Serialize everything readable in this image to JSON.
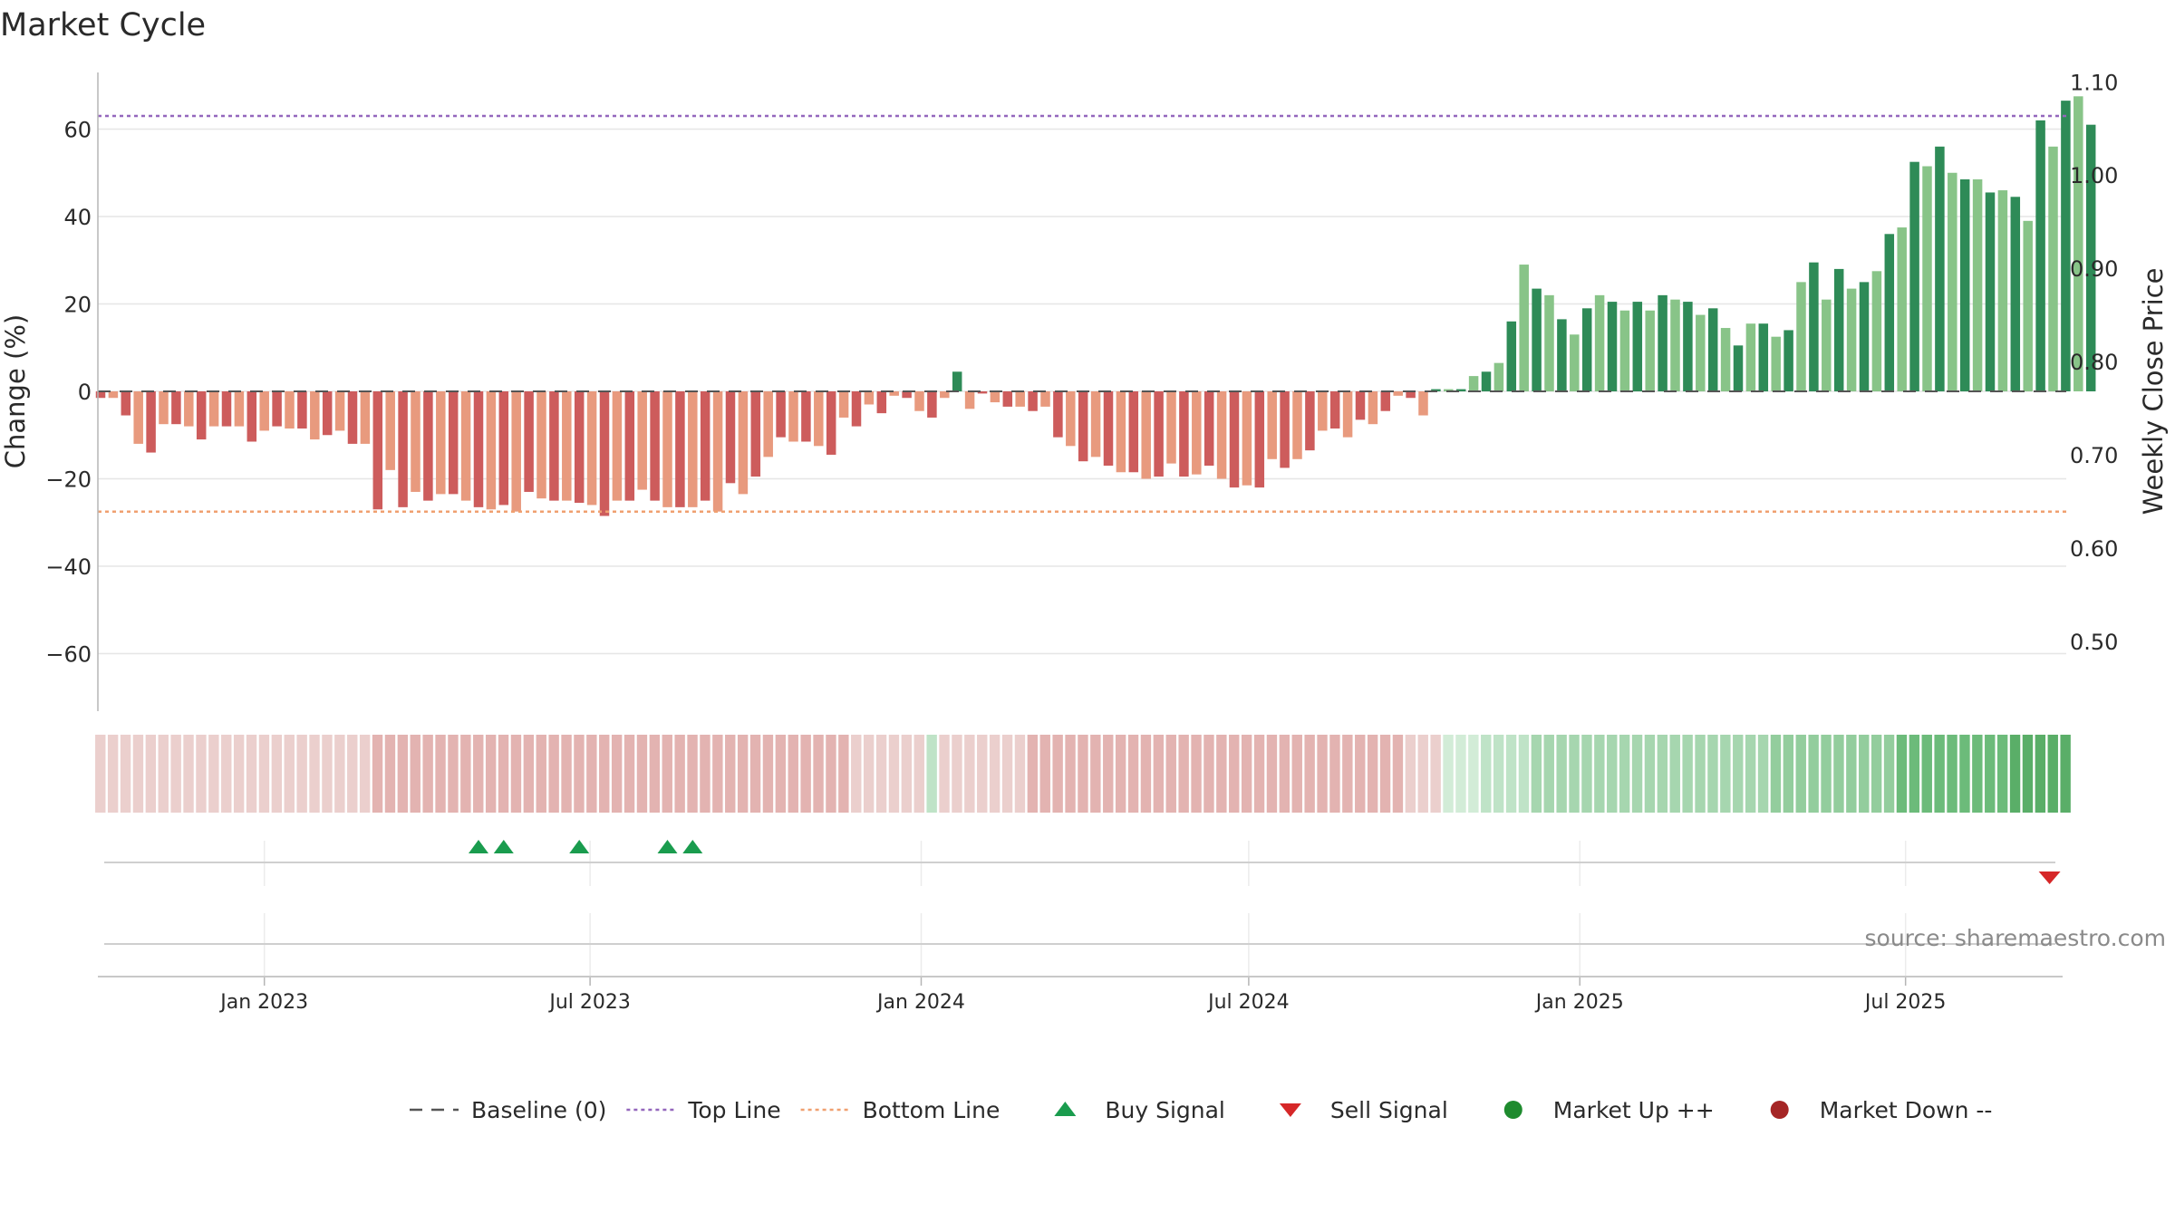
{
  "chart_data": {
    "type": "bar",
    "title": "Market Cycle",
    "ylabel": "Change (%)",
    "y2label": "Weekly Close Price",
    "ylim": [
      -73,
      73
    ],
    "y2lim": [
      0.425,
      1.11
    ],
    "yticks": [
      -60,
      -40,
      -20,
      0,
      20,
      40,
      60
    ],
    "y2ticks": [
      "0.50",
      "0.60",
      "0.70",
      "0.80",
      "0.90",
      "1.00",
      "1.10"
    ],
    "xticks": [
      {
        "label": "Jan 2023",
        "date": "2023-01-01"
      },
      {
        "label": "Jul 2023",
        "date": "2023-07-01"
      },
      {
        "label": "Jan 2024",
        "date": "2024-01-01"
      },
      {
        "label": "Jul 2024",
        "date": "2024-07-01"
      },
      {
        "label": "Jan 2025",
        "date": "2025-01-01"
      },
      {
        "label": "Jul 2025",
        "date": "2025-07-01"
      }
    ],
    "first_week": "2022-10-02",
    "reference_lines": {
      "baseline": 0,
      "top_line": 63,
      "bottom_line": -27.5
    },
    "grid": true,
    "legend_position": "bottom",
    "source": "source: sharemaestro.com",
    "values": [
      -1.5,
      -1.5,
      -5.5,
      -12,
      -14,
      -7.5,
      -7.5,
      -8,
      -11,
      -8,
      -8,
      -8,
      -11.5,
      -9,
      -8,
      -8.5,
      -8.5,
      -11,
      -10,
      -9,
      -12,
      -12,
      -27,
      -18,
      -26.5,
      -23,
      -25,
      -23.5,
      -23.5,
      -25,
      -26.5,
      -27,
      -26,
      -27.5,
      -23,
      -24.5,
      -25,
      -25,
      -25.5,
      -26,
      -28.5,
      -25,
      -25,
      -22.5,
      -25,
      -26.5,
      -26.5,
      -26.5,
      -25,
      -27.5,
      -21,
      -23.5,
      -19.5,
      -15,
      -10.5,
      -11.5,
      -11.5,
      -12.5,
      -14.5,
      -6,
      -8,
      -3,
      -5,
      -1,
      -1.5,
      -4.5,
      -6,
      -1.5,
      4.5,
      -4,
      -0.5,
      -2.5,
      -3.5,
      -3.5,
      -4.5,
      -3.5,
      -10.5,
      -12.5,
      -16,
      -15,
      -17,
      -18.5,
      -18.5,
      -20,
      -19.5,
      -16.5,
      -19.5,
      -19,
      -17,
      -20,
      -22,
      -21.5,
      -22,
      -15.5,
      -17.5,
      -15.5,
      -13.5,
      -9,
      -8.5,
      -10.5,
      -6.5,
      -7.5,
      -4.5,
      -1,
      -1.5,
      -5.5,
      0.5,
      0.5,
      0.5,
      3.5,
      4.5,
      6.5,
      16,
      29,
      23.5,
      22,
      16.5,
      13,
      19,
      22,
      20.5,
      18.5,
      20.5,
      18.5,
      22,
      21,
      20.5,
      17.5,
      19,
      14.5,
      10.5,
      15.5,
      15.5,
      12.5,
      14,
      25,
      29.5,
      21,
      28,
      23.5,
      25,
      27.5,
      36,
      37.5,
      52.5,
      51.5,
      56,
      50,
      48.5,
      48.5,
      45.5,
      46,
      44.5,
      39,
      62,
      56,
      66.5,
      67.5,
      61
    ],
    "shading": [
      {
        "range": [
          0,
          22
        ],
        "color": "#ebcfcd"
      },
      {
        "range": [
          22,
          60
        ],
        "color": "#e3b3b1"
      },
      {
        "range": [
          60,
          66
        ],
        "color": "#ebcfcd"
      },
      {
        "range": [
          66,
          67
        ],
        "color": "#bfe3c7"
      },
      {
        "range": [
          67,
          74
        ],
        "color": "#ebcfcd"
      },
      {
        "range": [
          74,
          104
        ],
        "color": "#e3b3b1"
      },
      {
        "range": [
          104,
          107
        ],
        "color": "#ebcfcd"
      },
      {
        "range": [
          107,
          110
        ],
        "color": "#d2ecd7"
      },
      {
        "range": [
          110,
          114
        ],
        "color": "#bfe3c7"
      },
      {
        "range": [
          114,
          133
        ],
        "color": "#a6d6af"
      },
      {
        "range": [
          133,
          143
        ],
        "color": "#93cd9d"
      },
      {
        "range": [
          143,
          152
        ],
        "color": "#6cbb7a"
      },
      {
        "range": [
          152,
          157
        ],
        "color": "#5aae68"
      }
    ],
    "buy_signals": [
      30,
      32,
      38,
      45,
      47
    ],
    "sell_signals": [
      154
    ],
    "colors": {
      "bull_dark": "#2e8b57",
      "bull_light": "#88c488",
      "bear_dark": "#cd5c5c",
      "bear_light": "#e89a7e",
      "top_line": "#9467bd",
      "bottom_line": "#f0a070",
      "baseline": "#555555",
      "buy": "#1a9c4e",
      "sell": "#d62728",
      "market_up": "#1e8b2e",
      "market_down": "#a52525",
      "grid": "#e6e6e6"
    }
  },
  "legend": [
    {
      "key": "baseline",
      "label": "Baseline (0)"
    },
    {
      "key": "top_line",
      "label": "Top Line"
    },
    {
      "key": "bottom_line",
      "label": "Bottom Line"
    },
    {
      "key": "buy",
      "label": "Buy Signal"
    },
    {
      "key": "sell",
      "label": "Sell Signal"
    },
    {
      "key": "market_up",
      "label": "Market Up ++"
    },
    {
      "key": "market_down",
      "label": "Market Down --"
    }
  ]
}
